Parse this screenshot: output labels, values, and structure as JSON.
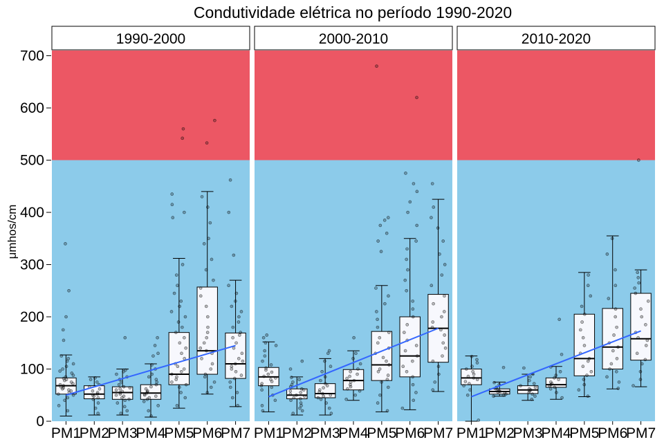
{
  "chart_data": {
    "type": "box",
    "title": "Condutividade elétrica no período 1990-2020",
    "ylabel": "μmhos/cm",
    "xlabel": "",
    "categories": [
      "PM1",
      "PM2",
      "PM3",
      "PM4",
      "PM5",
      "PM6",
      "PM7"
    ],
    "y_ticks": [
      0,
      100,
      200,
      300,
      400,
      500,
      600,
      700
    ],
    "ylim": [
      0,
      710
    ],
    "threshold": 500,
    "colors": {
      "above_threshold": "#EC5764",
      "below_threshold": "#8CCBEA",
      "trend_line": "#3366FF",
      "box_fill": "#F7F8FD",
      "strip_fill": "#FFFFFF"
    },
    "grid": false,
    "panels": [
      {
        "label": "1990-2000",
        "boxes": [
          {
            "category": "PM1",
            "min": 10,
            "q1": 52,
            "median": 68,
            "q3": 83,
            "max": 127,
            "outliers": [
              155,
              175,
              200,
              250,
              340
            ],
            "points": [
              20,
              30,
              40,
              45,
              50,
              52,
              55,
              58,
              60,
              62,
              64,
              66,
              68,
              70,
              72,
              75,
              78,
              80,
              82,
              85,
              88,
              92,
              96,
              100,
              105,
              110,
              115,
              120,
              125
            ]
          },
          {
            "category": "PM2",
            "min": 12,
            "q1": 43,
            "median": 52,
            "q3": 68,
            "max": 85,
            "outliers": [],
            "points": [
              15,
              25,
              35,
              42,
              45,
              48,
              50,
              52,
              55,
              58,
              62,
              66,
              70,
              75,
              80,
              83
            ]
          },
          {
            "category": "PM3",
            "min": 12,
            "q1": 42,
            "median": 55,
            "q3": 66,
            "max": 100,
            "outliers": [
              160
            ],
            "points": [
              15,
              20,
              28,
              35,
              40,
              42,
              45,
              48,
              50,
              52,
              55,
              57,
              60,
              62,
              64,
              66,
              70,
              75,
              80,
              85,
              90,
              95,
              98
            ]
          },
          {
            "category": "PM4",
            "min": 8,
            "q1": 42,
            "median": 54,
            "q3": 70,
            "max": 110,
            "outliers": [
              125,
              130,
              145,
              160
            ],
            "points": [
              10,
              20,
              30,
              38,
              42,
              45,
              48,
              50,
              52,
              54,
              56,
              58,
              62,
              66,
              70,
              75,
              80,
              85,
              90,
              100,
              108
            ]
          },
          {
            "category": "PM5",
            "min": 25,
            "q1": 70,
            "median": 90,
            "q3": 170,
            "max": 312,
            "outliers": [
              390,
              400,
              415,
              435,
              542,
              560
            ],
            "points": [
              30,
              45,
              55,
              65,
              70,
              75,
              80,
              85,
              90,
              95,
              100,
              105,
              110,
              120,
              130,
              140,
              150,
              160,
              170,
              180,
              190,
              200,
              210,
              220,
              230,
              245,
              260,
              280,
              300
            ]
          },
          {
            "category": "PM6",
            "min": 52,
            "q1": 90,
            "median": 135,
            "q3": 257,
            "max": 440,
            "outliers": [
              533,
              576
            ],
            "points": [
              55,
              65,
              75,
              85,
              90,
              100,
              110,
              120,
              130,
              135,
              140,
              150,
              160,
              170,
              180,
              200,
              220,
              240,
              255,
              270,
              290,
              310,
              340,
              350,
              380,
              410,
              430
            ]
          },
          {
            "category": "PM7",
            "min": 28,
            "q1": 82,
            "median": 110,
            "q3": 169,
            "max": 270,
            "outliers": [
              318,
              400,
              462
            ],
            "points": [
              30,
              45,
              55,
              65,
              75,
              82,
              88,
              95,
              100,
              105,
              110,
              115,
              120,
              130,
              140,
              150,
              160,
              165,
              170,
              180,
              190,
              200,
              210,
              220,
              230,
              245,
              260
            ]
          }
        ],
        "trend": {
          "start": {
            "category": "PM1",
            "value": 50
          },
          "end": {
            "category": "PM7",
            "value": 145
          }
        }
      },
      {
        "label": "2000-2010",
        "boxes": [
          {
            "category": "PM1",
            "min": 18,
            "q1": 68,
            "median": 85,
            "q3": 103,
            "max": 152,
            "outliers": [
              160,
              165
            ],
            "points": [
              20,
              30,
              40,
              50,
              60,
              65,
              68,
              72,
              76,
              80,
              83,
              86,
              90,
              94,
              98,
              102,
              108,
              115,
              125,
              135,
              145,
              150
            ]
          },
          {
            "category": "PM2",
            "min": 12,
            "q1": 43,
            "median": 50,
            "q3": 62,
            "max": 85,
            "outliers": [
              100,
              115
            ],
            "points": [
              15,
              20,
              25,
              30,
              35,
              40,
              43,
              45,
              48,
              50,
              52,
              55,
              58,
              60,
              62,
              66,
              70,
              75,
              80,
              84
            ]
          },
          {
            "category": "PM3",
            "min": 12,
            "q1": 45,
            "median": 53,
            "q3": 72,
            "max": 120,
            "outliers": [
              130,
              135
            ],
            "points": [
              15,
              25,
              35,
              42,
              45,
              48,
              50,
              53,
              56,
              60,
              64,
              68,
              72,
              78,
              85,
              95,
              105,
              115
            ]
          },
          {
            "category": "PM4",
            "min": 40,
            "q1": 60,
            "median": 78,
            "q3": 99,
            "max": 135,
            "outliers": [
              160
            ],
            "points": [
              42,
              50,
              58,
              62,
              66,
              70,
              75,
              78,
              82,
              86,
              90,
              95,
              100,
              110,
              120,
              130
            ]
          },
          {
            "category": "PM5",
            "min": 18,
            "q1": 78,
            "median": 108,
            "q3": 172,
            "max": 260,
            "outliers": [
              325,
              345,
              360,
              375,
              385,
              390,
              680
            ],
            "points": [
              20,
              35,
              50,
              65,
              75,
              80,
              88,
              95,
              100,
              108,
              115,
              122,
              130,
              140,
              150,
              160,
              170,
              180,
              195,
              210,
              225,
              240,
              255
            ]
          },
          {
            "category": "PM6",
            "min": 22,
            "q1": 85,
            "median": 125,
            "q3": 200,
            "max": 350,
            "outliers": [
              375,
              400,
              420,
              440,
              455,
              475,
              620
            ],
            "points": [
              25,
              40,
              55,
              70,
              85,
              95,
              105,
              115,
              125,
              135,
              145,
              155,
              170,
              185,
              200,
              215,
              230,
              250,
              270,
              290,
              310,
              330,
              345
            ]
          },
          {
            "category": "PM7",
            "min": 57,
            "q1": 113,
            "median": 178,
            "q3": 243,
            "max": 425,
            "outliers": [
              455
            ],
            "points": [
              60,
              75,
              90,
              105,
              115,
              125,
              140,
              150,
              165,
              175,
              180,
              190,
              200,
              210,
              225,
              240,
              260,
              280,
              300,
              320,
              345,
              370,
              390,
              410
            ]
          }
        ],
        "trend": {
          "start": {
            "category": "PM1",
            "value": 47
          },
          "end": {
            "category": "PM7",
            "value": 178
          }
        }
      },
      {
        "label": "2010-2020",
        "boxes": [
          {
            "category": "PM1",
            "min": 0,
            "q1": 70,
            "median": 83,
            "q3": 100,
            "max": 125,
            "outliers": [],
            "points": [
              2,
              50,
              60,
              68,
              72,
              76,
              80,
              83,
              86,
              90,
              95,
              100,
              105,
              112,
              118,
              124
            ]
          },
          {
            "category": "PM2",
            "min": 48,
            "q1": 52,
            "median": 57,
            "q3": 62,
            "max": 75,
            "outliers": [
              103
            ],
            "points": [
              48,
              50,
              52,
              54,
              56,
              57,
              58,
              60,
              62,
              65,
              70,
              74
            ]
          },
          {
            "category": "PM3",
            "min": 40,
            "q1": 53,
            "median": 60,
            "q3": 68,
            "max": 90,
            "outliers": [
              102
            ],
            "points": [
              42,
              48,
              52,
              55,
              58,
              60,
              62,
              65,
              68,
              72,
              78,
              85,
              90
            ]
          },
          {
            "category": "PM4",
            "min": 42,
            "q1": 65,
            "median": 70,
            "q3": 83,
            "max": 105,
            "outliers": [
              128,
              195
            ],
            "points": [
              45,
              55,
              62,
              65,
              68,
              70,
              72,
              75,
              80,
              83,
              88,
              95,
              104
            ]
          },
          {
            "category": "PM5",
            "min": 47,
            "q1": 87,
            "median": 120,
            "q3": 205,
            "max": 285,
            "outliers": [],
            "points": [
              48,
              60,
              70,
              80,
              88,
              95,
              105,
              115,
              120,
              130,
              145,
              160,
              175,
              190,
              205,
              220,
              240,
              260,
              280
            ]
          },
          {
            "category": "PM6",
            "min": 62,
            "q1": 100,
            "median": 142,
            "q3": 216,
            "max": 355,
            "outliers": [],
            "points": [
              63,
              75,
              85,
              95,
              100,
              110,
              120,
              135,
              142,
              150,
              165,
              180,
              200,
              215,
              235,
              260,
              290,
              320,
              350
            ]
          },
          {
            "category": "PM7",
            "min": 66,
            "q1": 117,
            "median": 158,
            "q3": 245,
            "max": 290,
            "outliers": [
              500
            ],
            "points": [
              68,
              80,
              95,
              110,
              118,
              130,
              145,
              155,
              160,
              170,
              185,
              200,
              215,
              230,
              245,
              255,
              265,
              275,
              285
            ]
          }
        ],
        "trend": {
          "start": {
            "category": "PM1",
            "value": 47
          },
          "end": {
            "category": "PM7",
            "value": 173
          }
        }
      }
    ]
  }
}
